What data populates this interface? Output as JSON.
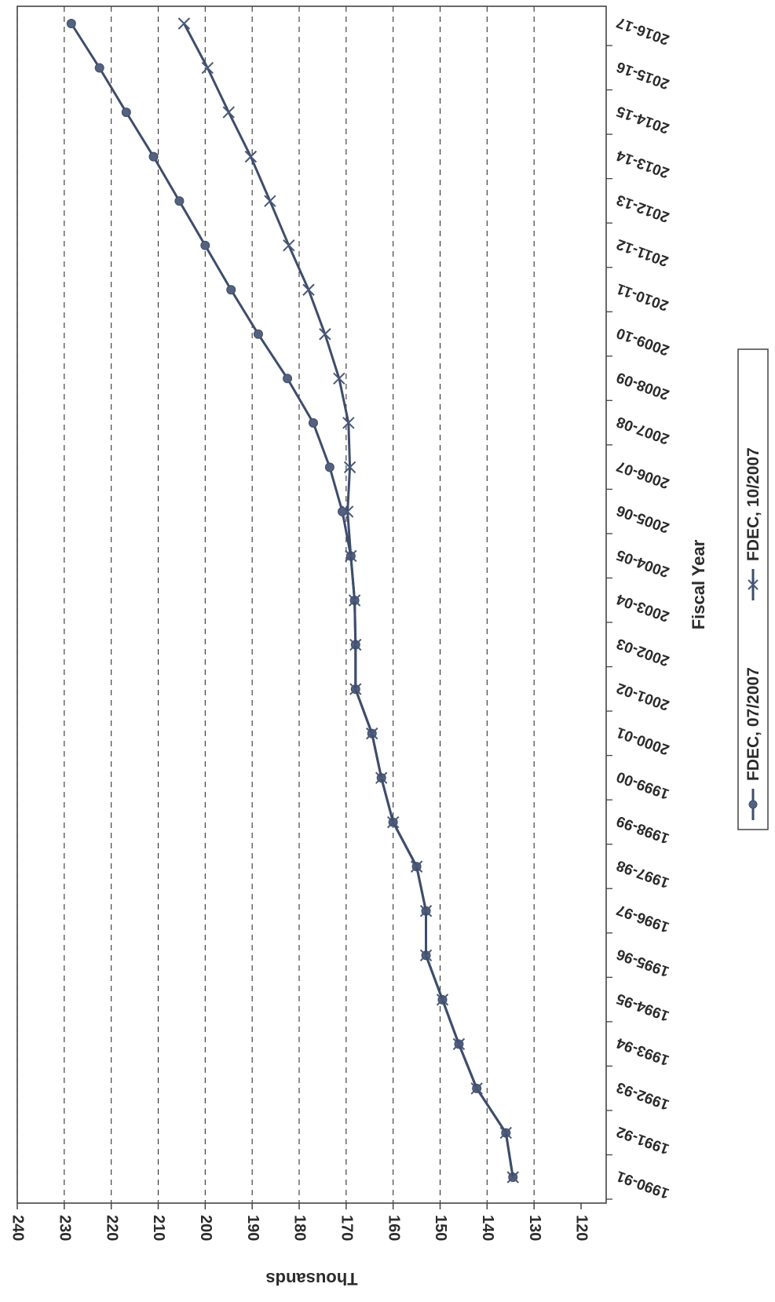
{
  "chart_data": {
    "type": "line",
    "orientation": "rotated-90-clockwise",
    "xlabel": "Fiscal Year",
    "ylabel": "Thousands",
    "ylim": [
      120,
      240
    ],
    "yticks": [
      120,
      130,
      140,
      150,
      160,
      170,
      180,
      190,
      200,
      210,
      220,
      230,
      240
    ],
    "grid": true,
    "legend_position": "bottom",
    "categories": [
      "1990-91",
      "1991-92",
      "1992-93",
      "1993-94",
      "1994-95",
      "1995-96",
      "1996-97",
      "1997-98",
      "1998-99",
      "1999-00",
      "2000-01",
      "2001-02",
      "2002-03",
      "2003-04",
      "2004-05",
      "2005-06",
      "2006-07",
      "2007-08",
      "2008-09",
      "2009-10",
      "2010-11",
      "2011-12",
      "2012-13",
      "2013-14",
      "2014-15",
      "2015-16",
      "2016-17"
    ],
    "series": [
      {
        "name": "FDEC, 07/2007",
        "marker": "diamond",
        "values": [
          134.5,
          136,
          142.2,
          146,
          149.5,
          153,
          153,
          155,
          160,
          162.5,
          164.5,
          168,
          168,
          168.2,
          169,
          170.8,
          173.5,
          177,
          182.5,
          188.7,
          194.5,
          200,
          205.5,
          211,
          216.8,
          222.5,
          228.5
        ]
      },
      {
        "name": "FDEC, 10/2007",
        "marker": "x",
        "values": [
          134.5,
          136,
          142.2,
          146,
          149.5,
          153,
          153,
          155,
          160,
          162.5,
          164.5,
          168,
          168,
          168.2,
          169,
          169.7,
          169.2,
          169.5,
          171.5,
          174.5,
          178,
          182.2,
          186.2,
          190.3,
          195,
          199.5,
          204.5
        ]
      }
    ]
  }
}
